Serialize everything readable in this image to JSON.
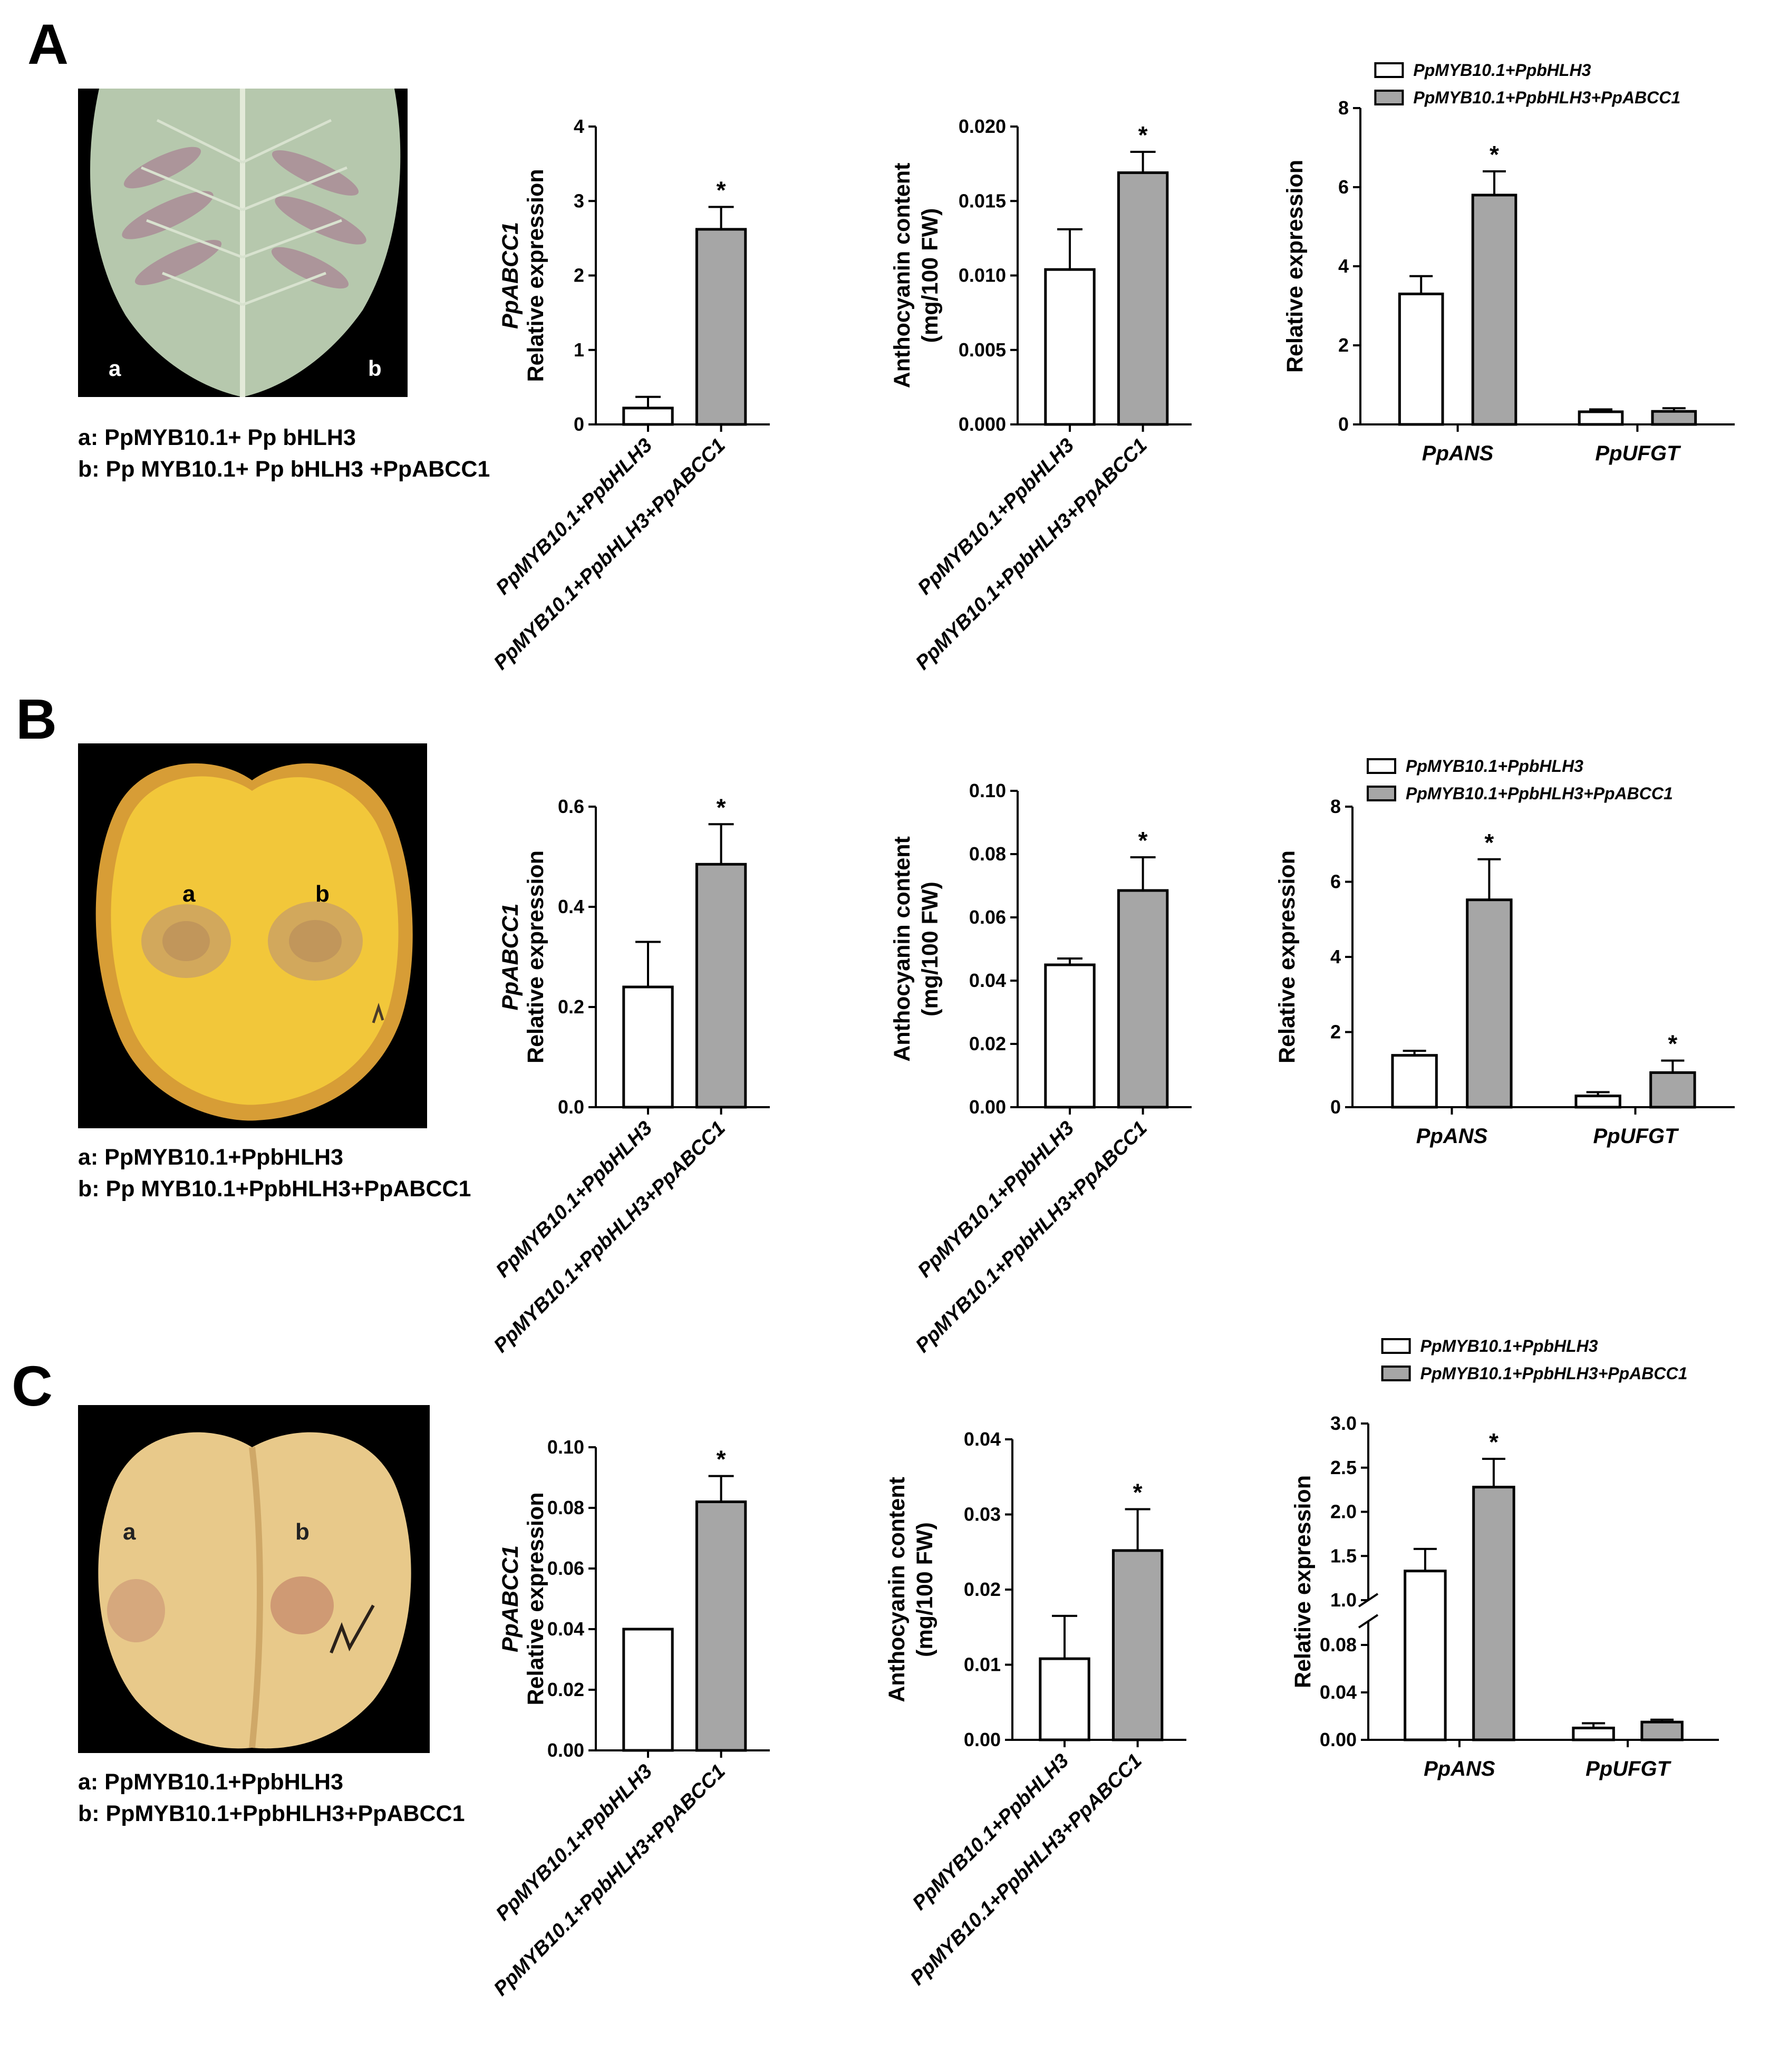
{
  "colors": {
    "treat_fill": "#a6a6a6",
    "ctrl_fill": "#ffffff",
    "stroke": "#000000",
    "photo_bg": "#000000"
  },
  "panels": [
    {
      "letter": "A",
      "photo": {
        "subject": "tobacco leaf",
        "label_a": "a",
        "label_b": "b"
      },
      "caption": [
        "a: PpMYB10.1+ Pp bHLH3",
        "b: Pp MYB10.1+ Pp bHLH3 +PpABCC1"
      ],
      "chart_data": [
        {
          "type": "bar",
          "ylabel_gene": "PpABCC1",
          "ylabel": "Relative expression",
          "categories": [
            "PpMYB10.1+PpbHLH3",
            "PpMYB10.1+PpbHLH3+PpABCC1"
          ],
          "values": [
            0.22,
            2.62
          ],
          "errors": [
            0.15,
            0.3
          ],
          "ylim": [
            0,
            4
          ],
          "yticks": [
            "0",
            "1",
            "2",
            "3",
            "4"
          ],
          "significance": [
            "",
            "*"
          ]
        },
        {
          "type": "bar",
          "ylabel_gene": "",
          "ylabel": "Anthocyanin content (mg/100 FW)",
          "ylabel_lines": [
            "Anthocyanin content",
            "(mg/100 FW)"
          ],
          "categories": [
            "PpMYB10.1+PpbHLH3",
            "PpMYB10.1+PpbHLH3+PpABCC1"
          ],
          "values": [
            0.0104,
            0.0169
          ],
          "errors": [
            0.0027,
            0.0014
          ],
          "ylim": [
            0,
            0.02
          ],
          "yticks": [
            "0.000",
            "0.005",
            "0.010",
            "0.015",
            "0.020"
          ],
          "significance": [
            "",
            "*"
          ]
        },
        {
          "type": "bar",
          "ylabel": "Relative expression",
          "legend": [
            "PpMYB10.1+PpbHLH3",
            "PpMYB10.1+PpbHLH3+PpABCC1"
          ],
          "categories": [
            "PpANS",
            "PpUFGT"
          ],
          "series": [
            {
              "name": "PpMYB10.1+PpbHLH3",
              "values": [
                3.3,
                0.32
              ],
              "errors": [
                0.45,
                0.06
              ],
              "significance": [
                "",
                ""
              ]
            },
            {
              "name": "PpMYB10.1+PpbHLH3+PpABCC1",
              "values": [
                5.8,
                0.33
              ],
              "errors": [
                0.6,
                0.08
              ],
              "significance": [
                "*",
                ""
              ]
            }
          ],
          "ylim": [
            0,
            8
          ],
          "yticks": [
            "0",
            "2",
            "4",
            "6",
            "8"
          ]
        }
      ]
    },
    {
      "letter": "B",
      "photo": {
        "subject": "peach fruit (flesh)",
        "label_a": "a",
        "label_b": "b"
      },
      "caption": [
        "a: PpMYB10.1+PpbHLH3",
        "b: Pp MYB10.1+PpbHLH3+PpABCC1"
      ],
      "chart_data": [
        {
          "type": "bar",
          "ylabel_gene": "PpABCC1",
          "ylabel": "Relative expression",
          "categories": [
            "PpMYB10.1+PpbHLH3",
            "PpMYB10.1+PpbHLH3+PpABCC1"
          ],
          "values": [
            0.24,
            0.485
          ],
          "errors": [
            0.09,
            0.08
          ],
          "ylim": [
            0,
            0.6
          ],
          "yticks": [
            "0.0",
            "0.2",
            "0.4",
            "0.6"
          ],
          "significance": [
            "",
            "*"
          ]
        },
        {
          "type": "bar",
          "ylabel_gene": "",
          "ylabel": "Anthocyanin content (mg/100 FW)",
          "ylabel_lines": [
            "Anthocyanin content",
            "(mg/100 FW)"
          ],
          "categories": [
            "PpMYB10.1+PpbHLH3",
            "PpMYB10.1+PpbHLH3+PpABCC1"
          ],
          "values": [
            0.045,
            0.0685
          ],
          "errors": [
            0.002,
            0.0105
          ],
          "ylim": [
            0,
            0.1
          ],
          "yticks": [
            "0.00",
            "0.02",
            "0.04",
            "0.06",
            "0.08",
            "0.10"
          ],
          "significance": [
            "",
            "*"
          ]
        },
        {
          "type": "bar",
          "ylabel": "Relative expression",
          "legend": [
            "PpMYB10.1+PpbHLH3",
            "PpMYB10.1+PpbHLH3+PpABCC1"
          ],
          "categories": [
            "PpANS",
            "PpUFGT"
          ],
          "series": [
            {
              "name": "PpMYB10.1+PpbHLH3",
              "values": [
                1.38,
                0.3
              ],
              "errors": [
                0.12,
                0.1
              ],
              "significance": [
                "",
                ""
              ]
            },
            {
              "name": "PpMYB10.1+PpbHLH3+PpABCC1",
              "values": [
                5.52,
                0.92
              ],
              "errors": [
                1.08,
                0.32
              ],
              "significance": [
                "*",
                "*"
              ]
            }
          ],
          "ylim": [
            0,
            8
          ],
          "yticks": [
            "0",
            "2",
            "4",
            "6",
            "8"
          ]
        }
      ]
    },
    {
      "letter": "C",
      "photo": {
        "subject": "peach fruit (whole)",
        "label_a": "a",
        "label_b": "b"
      },
      "caption": [
        "a: PpMYB10.1+PpbHLH3",
        "b: PpMYB10.1+PpbHLH3+PpABCC1"
      ],
      "chart_data": [
        {
          "type": "bar",
          "ylabel_gene": "PpABCC1",
          "ylabel": "Relative expression",
          "categories": [
            "PpMYB10.1+PpbHLH3",
            "PpMYB10.1+PpbHLH3+PpABCC1"
          ],
          "values": [
            0.04,
            0.082
          ],
          "errors": [
            0.0,
            0.0085
          ],
          "ylim": [
            0,
            0.1
          ],
          "yticks": [
            "0.00",
            "0.02",
            "0.04",
            "0.06",
            "0.08",
            "0.10"
          ],
          "significance": [
            "",
            "*"
          ]
        },
        {
          "type": "bar",
          "ylabel_gene": "",
          "ylabel": "Anthocyanin content (mg/100 FW)",
          "ylabel_lines": [
            "Anthocyanin content",
            "(mg/100 FW)"
          ],
          "categories": [
            "PpMYB10.1+PpbHLH3",
            "PpMYB10.1+PpbHLH3+PpABCC1"
          ],
          "values": [
            0.0108,
            0.0252
          ],
          "errors": [
            0.0057,
            0.0055
          ],
          "ylim": [
            0,
            0.04
          ],
          "yticks": [
            "0.00",
            "0.01",
            "0.02",
            "0.03",
            "0.04"
          ],
          "significance": [
            "",
            "*"
          ]
        },
        {
          "type": "bar",
          "ylabel": "Relative expression",
          "legend": [
            "PpMYB10.1+PpbHLH3",
            "PpMYB10.1+PpbHLH3+PpABCC1"
          ],
          "categories": [
            "PpANS",
            "PpUFGT"
          ],
          "series": [
            {
              "name": "PpMYB10.1+PpbHLH3",
              "values": [
                1.33,
                0.01
              ],
              "errors": [
                0.25,
                0.004
              ],
              "significance": [
                "",
                ""
              ]
            },
            {
              "name": "PpMYB10.1+PpbHLH3+PpABCC1",
              "values": [
                2.28,
                0.015
              ],
              "errors": [
                0.32,
                0.002
              ],
              "significance": [
                "*",
                ""
              ]
            }
          ],
          "broken_axis": true,
          "ylim_lower": [
            0,
            0.1
          ],
          "yticks_lower": [
            "0.00",
            "0.04",
            "0.08"
          ],
          "ylim_upper": [
            1.0,
            3.0
          ],
          "yticks_upper": [
            "1.0",
            "1.5",
            "2.0",
            "2.5",
            "3.0"
          ]
        }
      ]
    }
  ]
}
